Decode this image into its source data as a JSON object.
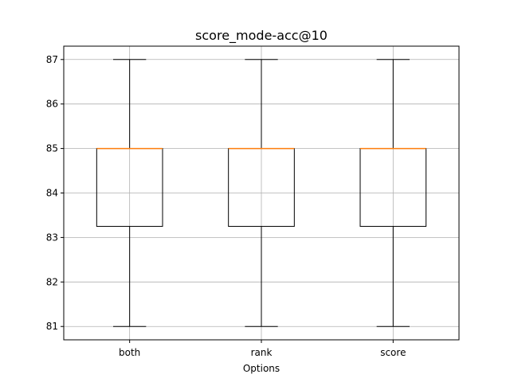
{
  "chart_data": {
    "type": "box",
    "title": "score_mode-acc@10",
    "xlabel": "Options",
    "ylabel": "",
    "categories": [
      "both",
      "rank",
      "score"
    ],
    "boxes": [
      {
        "category": "both",
        "min": 81,
        "q1": 83.25,
        "median": 85,
        "q3": 85,
        "max": 87
      },
      {
        "category": "rank",
        "min": 81,
        "q1": 83.25,
        "median": 85,
        "q3": 85,
        "max": 87
      },
      {
        "category": "score",
        "min": 81,
        "q1": 83.25,
        "median": 85,
        "q3": 85,
        "max": 87
      }
    ],
    "yticks": [
      81,
      82,
      83,
      84,
      85,
      86,
      87
    ],
    "ylim": [
      80.7,
      87.3
    ],
    "grid": true,
    "median_color": "#ff7f0e",
    "box_color": "#000000"
  }
}
